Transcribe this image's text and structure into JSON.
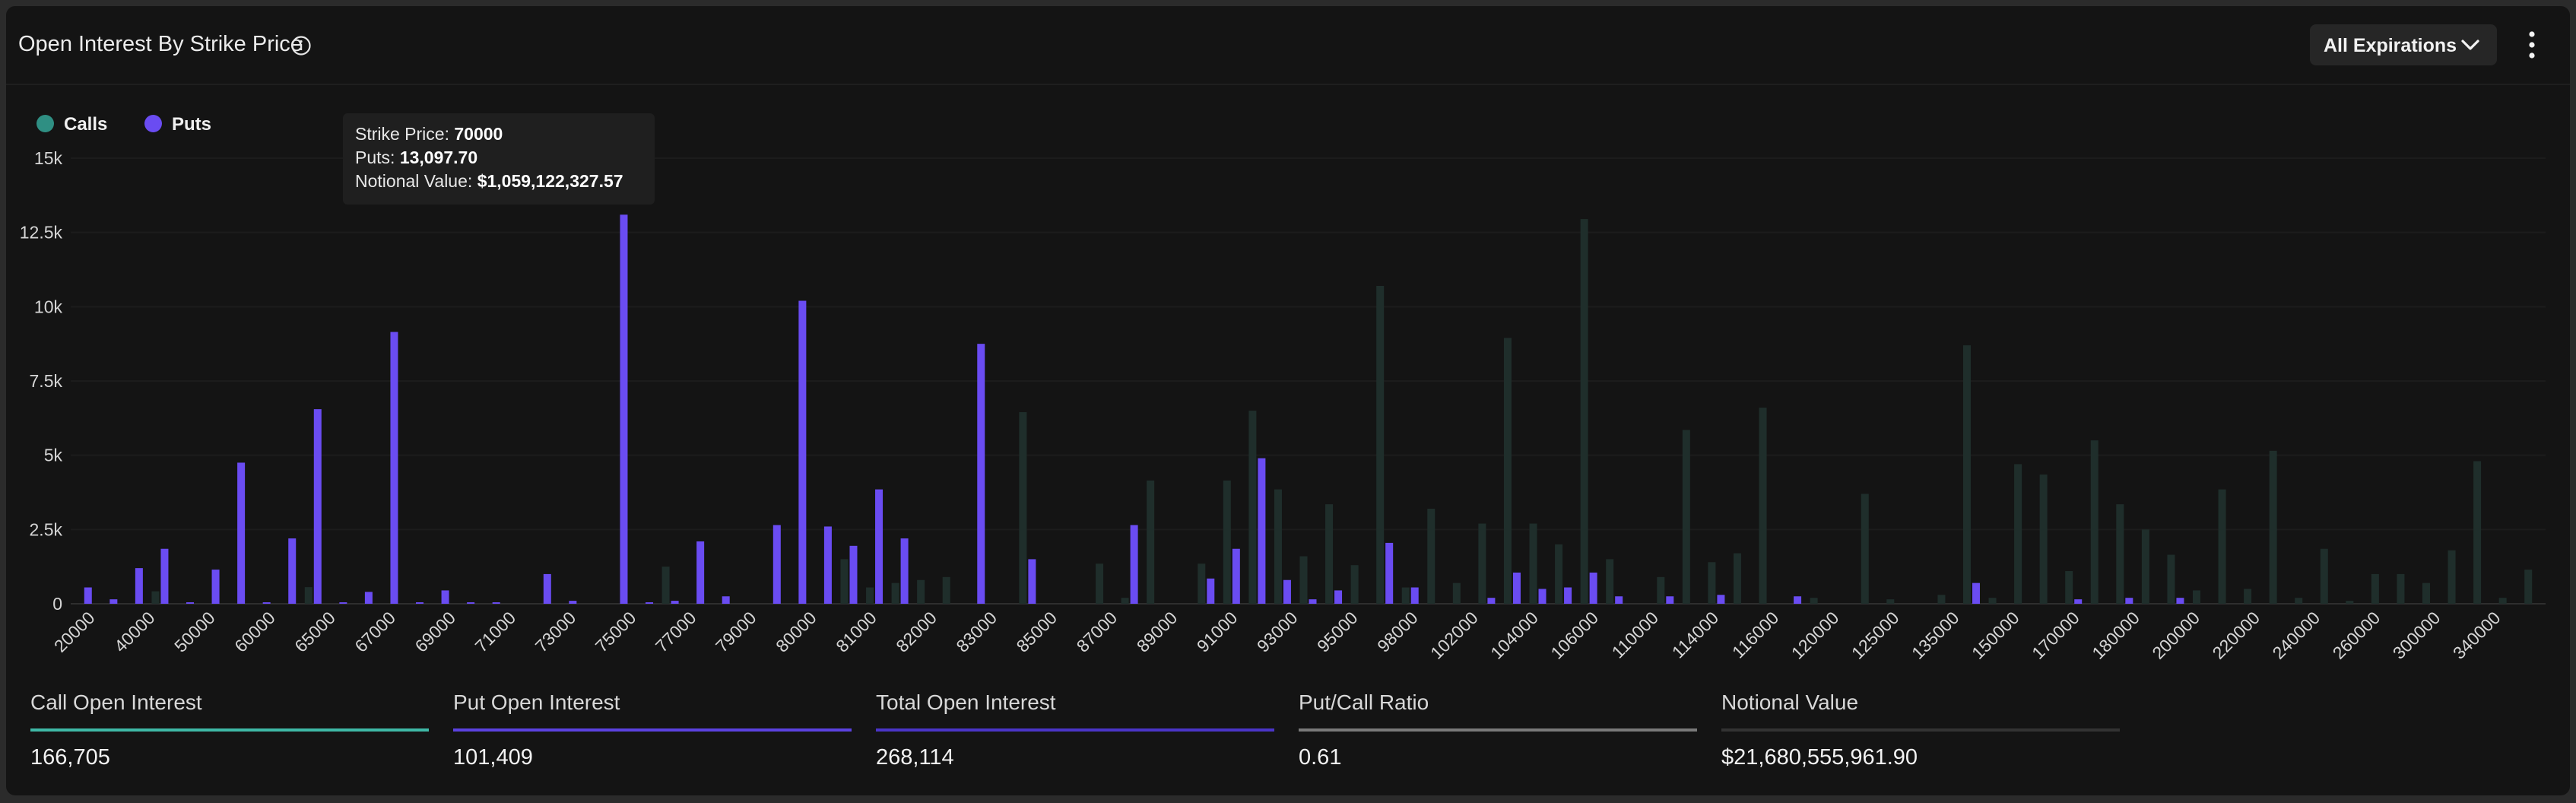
{
  "header": {
    "title": "Open Interest By Strike Price",
    "info_icon": "info-circle-icon",
    "expiration_button": "All Expirations",
    "chevron_icon": "chevron-down-icon",
    "menu_icon": "more-vertical-icon"
  },
  "legend": [
    {
      "label": "Calls",
      "color": "#2f8f83"
    },
    {
      "label": "Puts",
      "color": "#6a4cf2"
    }
  ],
  "tooltip": {
    "strike_label": "Strike Price:",
    "strike_value": "70000",
    "puts_label": "Puts:",
    "puts_value": "13,097.70",
    "notional_label": "Notional Value:",
    "notional_value": "$1,059,122,327.57"
  },
  "stats": [
    {
      "label": "Call Open Interest",
      "value": "166,705",
      "color": "#3fb8a6"
    },
    {
      "label": "Put Open Interest",
      "value": "101,409",
      "color": "#5b42e0"
    },
    {
      "label": "Total Open Interest",
      "value": "268,114",
      "color": "#4a35c8"
    },
    {
      "label": "Put/Call Ratio",
      "value": "0.61",
      "color": "#7a7a7a"
    },
    {
      "label": "Notional Value",
      "value": "$21,680,555,961.90",
      "color": "#333333"
    }
  ],
  "chart_data": {
    "type": "bar",
    "ylim": [
      0,
      15000
    ],
    "yticks": [
      0,
      2500,
      5000,
      7500,
      10000,
      12500,
      15000
    ],
    "ytick_labels": [
      "0",
      "2.5k",
      "5k",
      "7.5k",
      "10k",
      "12.5k",
      "15k"
    ],
    "xtick_labels": [
      "20000",
      "40000",
      "50000",
      "60000",
      "65000",
      "67000",
      "69000",
      "71000",
      "73000",
      "75000",
      "77000",
      "79000",
      "80000",
      "81000",
      "82000",
      "83000",
      "85000",
      "87000",
      "89000",
      "91000",
      "93000",
      "95000",
      "98000",
      "102000",
      "104000",
      "106000",
      "110000",
      "114000",
      "116000",
      "120000",
      "125000",
      "135000",
      "150000",
      "170000",
      "180000",
      "200000",
      "220000",
      "240000",
      "260000",
      "300000",
      "340000"
    ],
    "calls_color": "#1f2e2b",
    "puts_color": "#6a4cf2",
    "series": [
      {
        "name": "Calls",
        "values": [
          0,
          0,
          0,
          420,
          0,
          0,
          0,
          0,
          0,
          560,
          0,
          0,
          0,
          0,
          0,
          0,
          0,
          0,
          0,
          0,
          0,
          0,
          0,
          1250,
          0,
          0,
          0,
          0,
          0,
          0,
          1500,
          550,
          700,
          800,
          900,
          0,
          0,
          6450,
          0,
          0,
          1350,
          200,
          4150,
          0,
          1350,
          4150,
          6500,
          3850,
          1600,
          3350,
          1300,
          10700,
          550,
          3200,
          700,
          2700,
          8950,
          2700,
          2000,
          12950,
          1500,
          0,
          900,
          5850,
          1400,
          1700,
          6600,
          0,
          200,
          0,
          3700,
          150,
          0,
          300,
          8700,
          200,
          4700,
          4350,
          1100,
          5500,
          3350,
          2500,
          1650,
          450,
          3850,
          500,
          5150,
          200,
          1850,
          100,
          1000,
          1000,
          700,
          1800,
          4800,
          200,
          1150
        ]
      },
      {
        "name": "Puts",
        "values": [
          550,
          150,
          1200,
          1850,
          50,
          1150,
          4750,
          50,
          2200,
          6550,
          50,
          400,
          9150,
          50,
          450,
          50,
          50,
          0,
          1000,
          100,
          0,
          13097.7,
          50,
          100,
          2100,
          250,
          0,
          2650,
          10200,
          2600,
          1950,
          3850,
          2200,
          0,
          0,
          8750,
          0,
          1500,
          0,
          0,
          0,
          2650,
          0,
          0,
          850,
          1850,
          4900,
          800,
          150,
          450,
          0,
          2050,
          550,
          0,
          0,
          200,
          1050,
          500,
          550,
          1050,
          250,
          0,
          250,
          0,
          300,
          0,
          0,
          250,
          0,
          0,
          0,
          0,
          0,
          0,
          700,
          0,
          0,
          0,
          150,
          0,
          200,
          0,
          200,
          0,
          0,
          0,
          0,
          0,
          0,
          0,
          0,
          0,
          0,
          0,
          0,
          0,
          0
        ]
      }
    ]
  }
}
